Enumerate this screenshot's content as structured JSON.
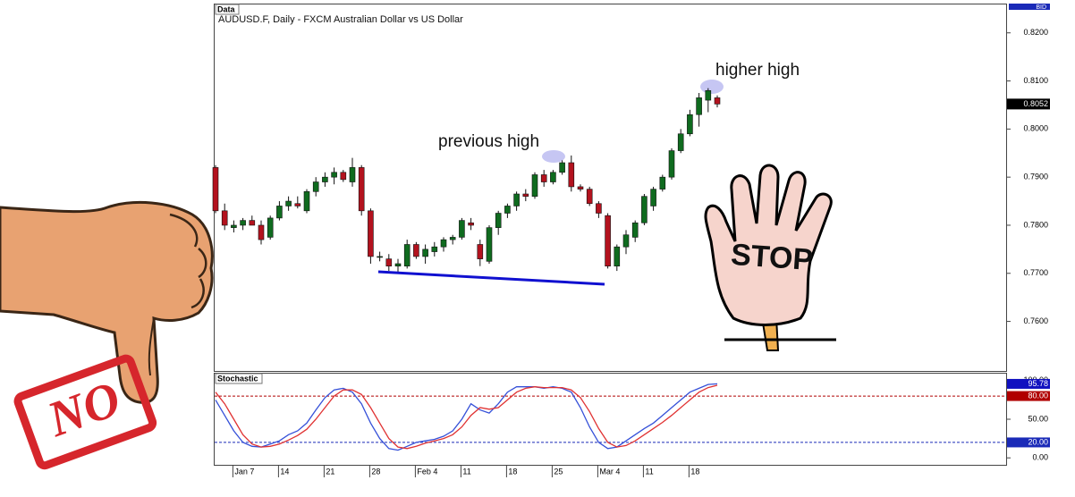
{
  "chart_data": [
    {
      "type": "candlestick",
      "panel_label": "Data",
      "title": "AUDUSD.F, Daily - FXCM Australian Dollar vs US Dollar",
      "bid_label": "BID",
      "annotations": [
        "previous high",
        "higher high"
      ],
      "categories": [
        null,
        null,
        "Jan 7",
        null,
        null,
        null,
        null,
        "14",
        null,
        null,
        null,
        null,
        "21",
        null,
        null,
        null,
        null,
        "28",
        null,
        null,
        null,
        null,
        "Feb 4",
        null,
        null,
        null,
        null,
        "11",
        null,
        null,
        null,
        null,
        "18",
        null,
        null,
        null,
        null,
        "25",
        null,
        null,
        null,
        null,
        "Mar 4",
        null,
        null,
        null,
        null,
        "11",
        null,
        null,
        null,
        null,
        "18",
        null,
        null,
        null
      ],
      "open": [
        0.792,
        0.783,
        0.7795,
        0.78,
        0.781,
        0.78,
        0.7775,
        0.7815,
        0.784,
        0.7845,
        0.783,
        0.787,
        0.789,
        0.79,
        0.791,
        0.789,
        0.792,
        0.783,
        0.7735,
        0.773,
        0.7715,
        0.7715,
        0.776,
        0.7735,
        0.7745,
        0.7755,
        0.777,
        0.7775,
        0.7805,
        0.776,
        0.7725,
        0.7795,
        0.7825,
        0.784,
        0.7865,
        0.786,
        0.7905,
        0.789,
        0.791,
        0.793,
        0.788,
        0.7875,
        0.7845,
        0.782,
        0.7715,
        0.7755,
        0.7775,
        0.7805,
        0.784,
        0.7875,
        0.79,
        0.7955,
        0.799,
        0.803,
        0.806,
        0.8065
      ],
      "high": [
        0.7925,
        0.7845,
        0.781,
        0.7815,
        0.782,
        0.781,
        0.782,
        0.785,
        0.786,
        0.786,
        0.7875,
        0.79,
        0.791,
        0.792,
        0.7915,
        0.794,
        0.7925,
        0.7835,
        0.7745,
        0.774,
        0.773,
        0.777,
        0.7765,
        0.776,
        0.7765,
        0.7775,
        0.778,
        0.7815,
        0.7815,
        0.777,
        0.78,
        0.783,
        0.7845,
        0.787,
        0.7875,
        0.791,
        0.7915,
        0.7915,
        0.7935,
        0.7945,
        0.7885,
        0.788,
        0.785,
        0.7825,
        0.776,
        0.779,
        0.781,
        0.7865,
        0.788,
        0.7905,
        0.796,
        0.8,
        0.804,
        0.8075,
        0.8085,
        0.807
      ],
      "low": [
        0.7825,
        0.779,
        0.7785,
        0.779,
        0.78,
        0.776,
        0.777,
        0.781,
        0.783,
        0.7835,
        0.7825,
        0.786,
        0.788,
        0.7885,
        0.789,
        0.788,
        0.782,
        0.772,
        0.7725,
        0.7705,
        0.77,
        0.771,
        0.773,
        0.772,
        0.7735,
        0.7745,
        0.776,
        0.777,
        0.779,
        0.7715,
        0.772,
        0.778,
        0.7815,
        0.783,
        0.785,
        0.7855,
        0.788,
        0.7885,
        0.7905,
        0.787,
        0.787,
        0.784,
        0.7815,
        0.771,
        0.7705,
        0.774,
        0.7765,
        0.78,
        0.783,
        0.787,
        0.7895,
        0.795,
        0.7985,
        0.8005,
        0.8035,
        0.8045
      ],
      "close": [
        0.783,
        0.78,
        0.78,
        0.781,
        0.78,
        0.777,
        0.7815,
        0.784,
        0.785,
        0.784,
        0.787,
        0.789,
        0.79,
        0.791,
        0.7895,
        0.792,
        0.783,
        0.7735,
        0.7735,
        0.7715,
        0.772,
        0.776,
        0.7735,
        0.775,
        0.7755,
        0.777,
        0.7775,
        0.781,
        0.78,
        0.773,
        0.7795,
        0.7825,
        0.784,
        0.7865,
        0.786,
        0.7905,
        0.789,
        0.791,
        0.793,
        0.788,
        0.7875,
        0.7845,
        0.7825,
        0.7715,
        0.7755,
        0.778,
        0.7805,
        0.786,
        0.7875,
        0.79,
        0.7955,
        0.799,
        0.803,
        0.8065,
        0.808,
        0.8052
      ],
      "last_label": "0.8052",
      "up_color": "#0f6b1f",
      "down_color": "#b3121e",
      "ylim": [
        0.7497,
        0.8259
      ],
      "yticks": [
        {
          "value": 0.76,
          "label": "0.7600"
        },
        {
          "value": 0.77,
          "label": "0.7700"
        },
        {
          "value": 0.78,
          "label": "0.7800"
        },
        {
          "value": 0.79,
          "label": "0.7900"
        },
        {
          "value": 0.8,
          "label": "0.8000"
        },
        {
          "value": 0.81,
          "label": "0.8100"
        },
        {
          "value": 0.82,
          "label": "0.8200"
        }
      ]
    },
    {
      "type": "line",
      "title": "Stochastic",
      "series": [
        {
          "color": "#3550d8",
          "values": [
            75,
            55,
            35,
            20,
            15,
            14,
            18,
            22,
            30,
            35,
            45,
            62,
            78,
            88,
            90,
            85,
            70,
            45,
            25,
            12,
            10,
            15,
            20,
            22,
            24,
            28,
            35,
            50,
            70,
            62,
            58,
            70,
            85,
            92,
            92,
            92,
            90,
            92,
            90,
            85,
            65,
            40,
            20,
            12,
            14,
            22,
            30,
            38,
            45,
            55,
            65,
            75,
            85,
            90,
            95,
            95.78
          ]
        },
        {
          "color": "#e03232",
          "values": [
            85,
            70,
            50,
            30,
            18,
            14,
            15,
            18,
            23,
            29,
            37,
            50,
            65,
            80,
            88,
            88,
            82,
            65,
            45,
            25,
            14,
            12,
            15,
            19,
            22,
            25,
            30,
            40,
            55,
            65,
            63,
            65,
            75,
            85,
            90,
            92,
            91,
            91,
            91,
            88,
            78,
            60,
            38,
            20,
            14,
            16,
            22,
            30,
            38,
            46,
            55,
            65,
            75,
            85,
            91,
            94
          ]
        }
      ],
      "levels": [
        {
          "value": 80,
          "label": "80.00",
          "color": "#b00000"
        },
        {
          "value": 20,
          "label": "20.00",
          "color": "#1a2ab8"
        }
      ],
      "ylim": [
        -9,
        109
      ],
      "yticks": [
        {
          "value": 0,
          "label": "0.00"
        },
        {
          "value": 50,
          "label": "50.00"
        },
        {
          "value": 100,
          "label": "100.00"
        }
      ]
    }
  ],
  "illustrations": {
    "no_stamp": "NO",
    "stop_sign": "STOP"
  }
}
